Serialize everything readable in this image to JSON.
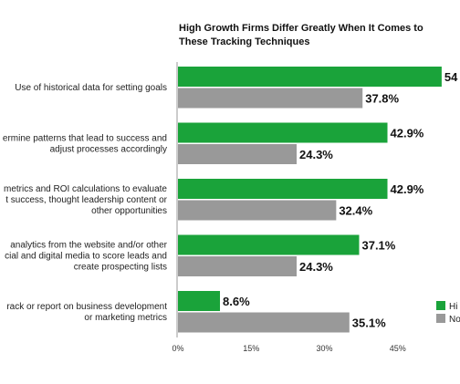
{
  "chart_data": {
    "type": "bar",
    "orientation": "horizontal",
    "title": "High Growth Firms Differ Greatly When It Comes to These Tracking Techniques",
    "categories": [
      [
        "Use of historical data for setting goals"
      ],
      [
        "ermine patterns that lead to success and",
        "adjust processes accordingly"
      ],
      [
        "metrics and ROI calculations to evaluate",
        "t success, thought leadership content or",
        "other opportunities"
      ],
      [
        "analytics from the website and/or other",
        "cial and digital media to score leads and",
        "create prospecting lists"
      ],
      [
        "rack or report on business development",
        "or marketing metrics"
      ]
    ],
    "series": [
      {
        "name": "Hi",
        "color": "#1aa33a",
        "values": [
          54,
          42.9,
          42.9,
          37.1,
          8.6
        ],
        "labels": [
          "54",
          "42.9%",
          "42.9%",
          "37.1%",
          "8.6%"
        ]
      },
      {
        "name": "No",
        "color": "#999999",
        "values": [
          37.8,
          24.3,
          32.4,
          24.3,
          35.1
        ],
        "labels": [
          "37.8%",
          "24.3%",
          "32.4%",
          "24.3%",
          "35.1%"
        ]
      }
    ],
    "xlim": [
      0,
      55
    ],
    "xticks": [
      0,
      15,
      30,
      45
    ],
    "xtick_labels": [
      "0%",
      "15%",
      "30%",
      "45%"
    ],
    "grid": false,
    "legend": "bottom-right"
  }
}
